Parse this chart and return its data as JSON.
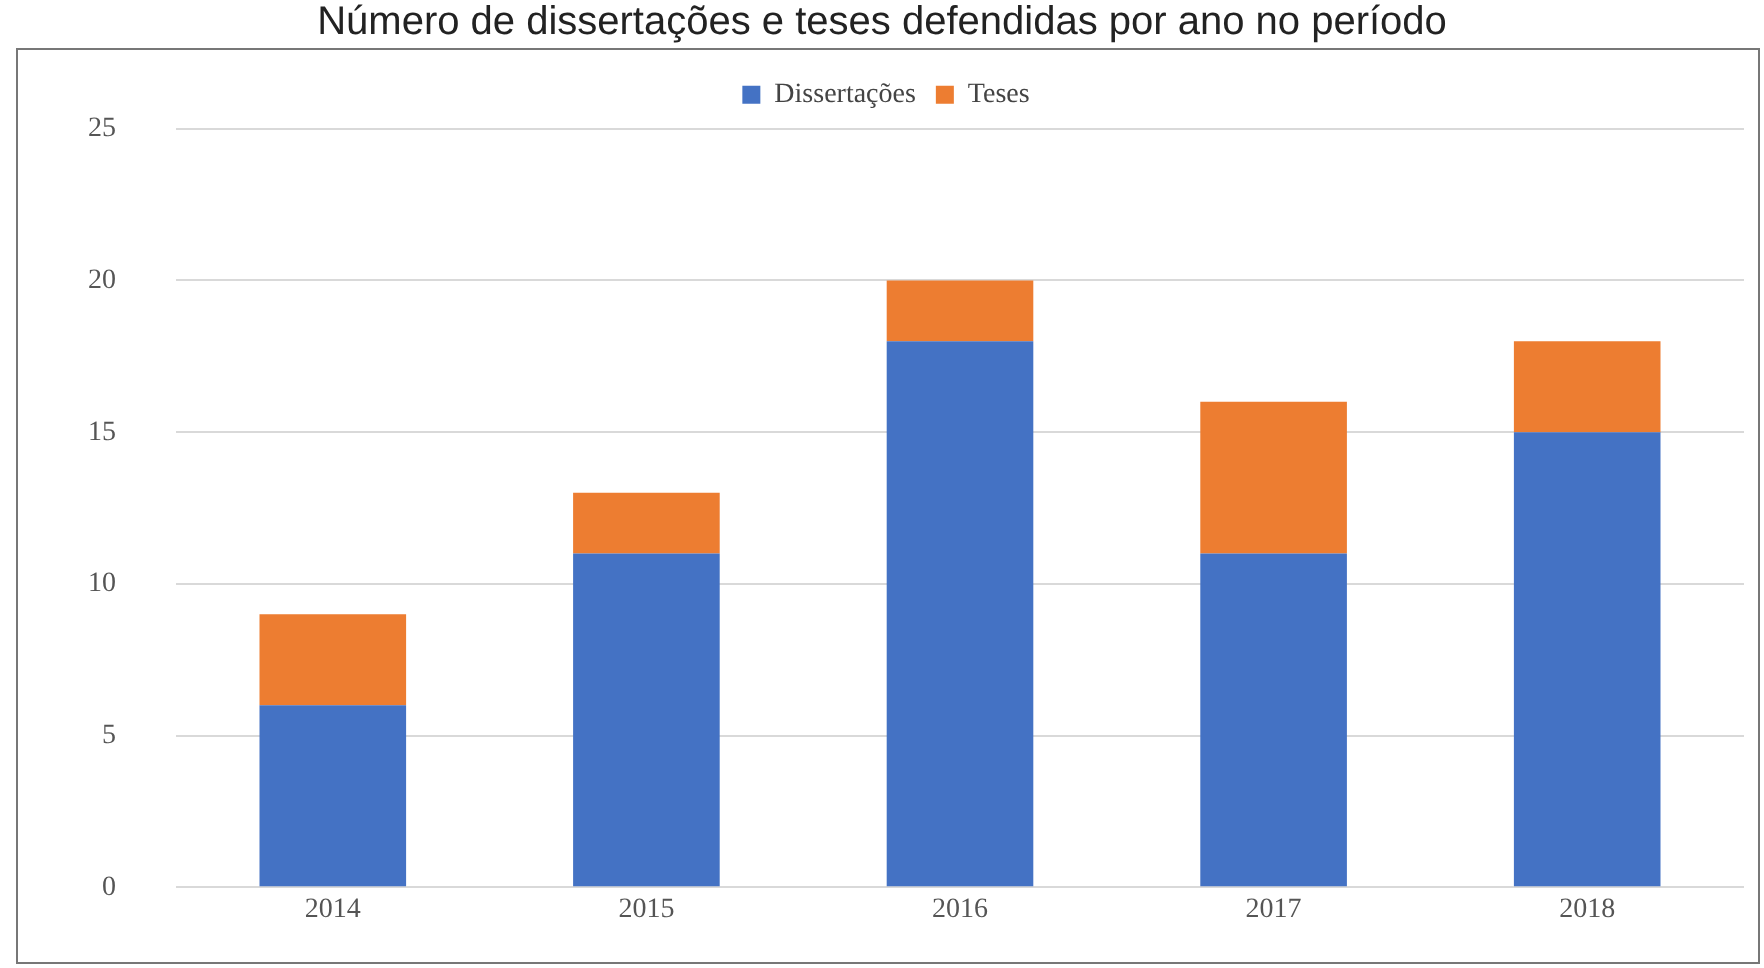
{
  "chart_data": {
    "type": "bar",
    "title": "Número de dissertações e teses defendidas por ano no período",
    "categories": [
      "2014",
      "2015",
      "2016",
      "2017",
      "2018"
    ],
    "stacked": true,
    "series": [
      {
        "name": "Dissertações",
        "color": "#4472c4",
        "values": [
          6,
          11,
          18,
          11,
          15
        ]
      },
      {
        "name": "Teses",
        "color": "#ed7d31",
        "values": [
          3,
          2,
          2,
          5,
          3
        ]
      }
    ],
    "ylim": [
      0,
      25
    ],
    "yticks": [
      0,
      5,
      10,
      15,
      20,
      25
    ],
    "grid": "y",
    "legend": "top"
  }
}
